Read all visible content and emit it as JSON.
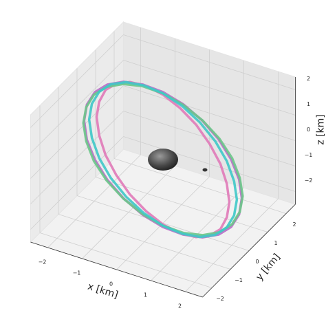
{
  "chart_data": {
    "type": "line3d",
    "xlabel": "x [km]",
    "ylabel": "y [km]",
    "zlabel": "z [km]",
    "xlim": [
      -2.5,
      2.5
    ],
    "ylim": [
      -2.5,
      2.5
    ],
    "zlim": [
      -2.5,
      2.5
    ],
    "xticks": [
      {
        "value": -2,
        "label": "−2"
      },
      {
        "value": -1,
        "label": "−1"
      },
      0,
      1,
      2
    ],
    "yticks": [
      {
        "value": -2,
        "label": "−2"
      },
      {
        "value": -1,
        "label": "−1"
      },
      0,
      1,
      2
    ],
    "zticks": [
      {
        "value": -2,
        "label": "−2"
      },
      {
        "value": -1,
        "label": "−1"
      },
      0,
      1,
      2
    ],
    "grid": true,
    "series": [
      {
        "color": "#b86cc8",
        "x": [
          2.59,
          2.5,
          2.24,
          1.83,
          1.3,
          0.67,
          0,
          -0.67,
          -1.3,
          -1.83,
          -2.24,
          -2.5,
          -2.59,
          -2.5,
          -2.24,
          -1.83,
          -1.3,
          -0.67,
          0,
          0.67,
          1.3,
          1.83,
          2.24,
          2.5
        ],
        "y": [
          -0.55,
          -0.53,
          -0.48,
          -0.39,
          -0.28,
          -0.14,
          0,
          0.14,
          0.28,
          0.39,
          0.48,
          0.53,
          0.55,
          0.53,
          0.48,
          0.39,
          0.28,
          0.14,
          0,
          -0.14,
          -0.28,
          -0.39,
          -0.48,
          -0.53
        ],
        "z": [
          0,
          0.69,
          1.33,
          1.87,
          2.29,
          2.56,
          2.65,
          2.56,
          2.29,
          1.87,
          1.33,
          0.69,
          0,
          -0.69,
          -1.33,
          -1.87,
          -2.29,
          -2.56,
          -2.65,
          -2.56,
          -2.29,
          -1.87,
          -1.33,
          -0.69
        ]
      },
      {
        "color": "#e07ab8",
        "x": [
          2.4,
          2.31,
          2.08,
          1.69,
          1.2,
          0.62,
          0,
          -0.62,
          -1.2,
          -1.69,
          -2.08,
          -2.31,
          -2.4,
          -2.31,
          -2.08,
          -1.69,
          -1.2,
          -0.62,
          0,
          0.62,
          1.2,
          1.69,
          2.08,
          2.31
        ],
        "y": [
          -0.87,
          -0.84,
          -0.76,
          -0.62,
          -0.44,
          -0.23,
          0,
          0.23,
          0.44,
          0.62,
          0.76,
          0.84,
          0.87,
          0.84,
          0.76,
          0.62,
          0.44,
          0.23,
          0,
          -0.23,
          -0.44,
          -0.62,
          -0.76,
          -0.84
        ],
        "z": [
          0,
          0.66,
          1.28,
          1.8,
          2.21,
          2.46,
          2.55,
          2.46,
          2.21,
          1.8,
          1.28,
          0.66,
          0,
          -0.66,
          -1.28,
          -1.8,
          -2.21,
          -2.46,
          -2.55,
          -2.46,
          -2.21,
          -1.8,
          -1.28,
          -0.66
        ]
      },
      {
        "color": "#6cc68a",
        "x": [
          2.56,
          2.47,
          2.22,
          1.81,
          1.28,
          0.66,
          0,
          -0.66,
          -1.28,
          -1.81,
          -2.22,
          -2.47,
          -2.56,
          -2.47,
          -2.22,
          -1.81,
          -1.28,
          -0.66,
          0,
          0.66,
          1.28,
          1.81,
          2.22,
          2.47
        ],
        "y": [
          -0.45,
          -0.44,
          -0.39,
          -0.32,
          -0.23,
          -0.12,
          0,
          0.12,
          0.23,
          0.32,
          0.39,
          0.44,
          0.45,
          0.44,
          0.39,
          0.32,
          0.23,
          0.12,
          0,
          -0.12,
          -0.23,
          -0.32,
          -0.39,
          -0.44
        ],
        "z": [
          0,
          0.67,
          1.3,
          1.84,
          2.25,
          2.51,
          2.6,
          2.51,
          2.25,
          1.84,
          1.3,
          0.67,
          0,
          -0.67,
          -1.3,
          -1.84,
          -2.25,
          -2.51,
          -2.6,
          -2.51,
          -2.25,
          -1.84,
          -1.3,
          -0.67
        ]
      },
      {
        "color": "#3ec8c8",
        "x": [
          2.51,
          2.42,
          2.17,
          1.78,
          1.26,
          0.65,
          0,
          -0.65,
          -1.26,
          -1.78,
          -2.17,
          -2.42,
          -2.51,
          -2.42,
          -2.17,
          -1.78,
          -1.26,
          -0.65,
          0,
          0.65,
          1.26,
          1.78,
          2.17,
          2.42
        ],
        "y": [
          -0.67,
          -0.65,
          -0.58,
          -0.48,
          -0.34,
          -0.17,
          0,
          0.17,
          0.34,
          0.48,
          0.58,
          0.65,
          0.67,
          0.65,
          0.58,
          0.48,
          0.34,
          0.17,
          0,
          -0.17,
          -0.34,
          -0.48,
          -0.58,
          -0.65
        ],
        "z": [
          0,
          0.67,
          1.3,
          1.84,
          2.25,
          2.51,
          2.6,
          2.51,
          2.25,
          1.84,
          1.3,
          0.67,
          0,
          -0.67,
          -1.3,
          -1.84,
          -2.25,
          -2.51,
          -2.6,
          -2.51,
          -2.25,
          -1.84,
          -1.3,
          -0.67
        ]
      }
    ]
  }
}
